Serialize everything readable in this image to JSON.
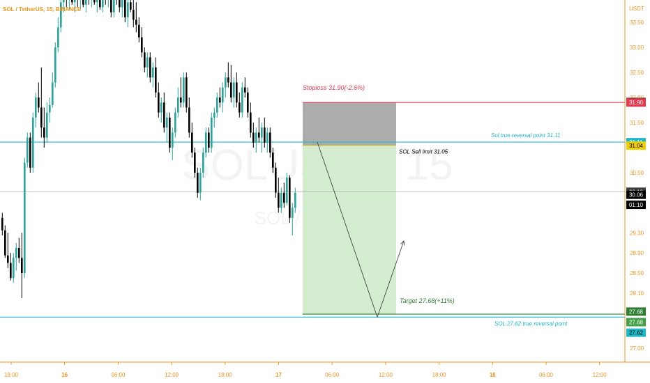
{
  "header": {
    "symbol_title": "SOL / TetherUS, 15, BINANCE"
  },
  "watermark": {
    "line1": "SOLUSDT, 15",
    "line2": "SOL / TetherUS"
  },
  "colors": {
    "up": "#26a69a",
    "down": "#000000",
    "stoploss": "#e53950",
    "target": "#2e7d32",
    "reversal": "#1cb8c8",
    "stop_zone": "#a8a8a8",
    "profit_zone": "#d4ecd0",
    "title": "#f7931a",
    "axis_text": "#f7931a"
  },
  "chart_data": {
    "type": "candlestick",
    "title": "SOL / TetherUS, 15, BINANCE",
    "y_axis_unit": "USDT",
    "ylim": [
      26.6,
      34.15
    ],
    "y_ticks": [
      33.5,
      33.0,
      32.5,
      32.0,
      31.5,
      30.5,
      29.3,
      28.9,
      28.5,
      28.1,
      27.0
    ],
    "y_tick_labels": [
      "33.50",
      "33.00",
      "32.50",
      "32.00",
      "31.50",
      "30.50",
      "29.30",
      "28.90",
      "28.50",
      "28.10",
      "27.00"
    ],
    "x_labels": [
      {
        "label": "18:00",
        "bold": false
      },
      {
        "label": "16",
        "bold": true
      },
      {
        "label": "06:00",
        "bold": false
      },
      {
        "label": "12:00",
        "bold": false
      },
      {
        "label": "18:00",
        "bold": false
      },
      {
        "label": "17",
        "bold": true
      },
      {
        "label": "06:00",
        "bold": false
      },
      {
        "label": "12:00",
        "bold": false
      },
      {
        "label": "18:00",
        "bold": false
      },
      {
        "label": "18",
        "bold": true
      },
      {
        "label": "06:00",
        "bold": false
      },
      {
        "label": "12:00",
        "bold": false
      }
    ],
    "candles": [
      {
        "o": 29.6,
        "h": 29.7,
        "l": 29.25,
        "c": 29.35
      },
      {
        "o": 29.35,
        "h": 29.45,
        "l": 28.8,
        "c": 28.85
      },
      {
        "o": 28.85,
        "h": 29.3,
        "l": 28.6,
        "c": 28.7
      },
      {
        "o": 28.7,
        "h": 28.9,
        "l": 28.35,
        "c": 28.4
      },
      {
        "o": 28.4,
        "h": 28.9,
        "l": 28.3,
        "c": 28.8
      },
      {
        "o": 28.8,
        "h": 29.1,
        "l": 28.55,
        "c": 29.0
      },
      {
        "o": 29.0,
        "h": 29.2,
        "l": 28.7,
        "c": 28.8
      },
      {
        "o": 28.8,
        "h": 29.3,
        "l": 28.0,
        "c": 28.5
      },
      {
        "o": 28.5,
        "h": 30.8,
        "l": 28.4,
        "c": 30.7
      },
      {
        "o": 30.7,
        "h": 31.3,
        "l": 30.6,
        "c": 31.2
      },
      {
        "o": 31.2,
        "h": 31.3,
        "l": 30.5,
        "c": 30.6
      },
      {
        "o": 30.6,
        "h": 31.7,
        "l": 30.5,
        "c": 31.6
      },
      {
        "o": 31.6,
        "h": 32.1,
        "l": 31.4,
        "c": 32.0
      },
      {
        "o": 32.0,
        "h": 32.3,
        "l": 31.7,
        "c": 31.8
      },
      {
        "o": 31.8,
        "h": 32.6,
        "l": 31.2,
        "c": 31.4
      },
      {
        "o": 31.4,
        "h": 31.8,
        "l": 31.0,
        "c": 31.2
      },
      {
        "o": 31.2,
        "h": 31.9,
        "l": 31.1,
        "c": 31.7
      },
      {
        "o": 31.7,
        "h": 32.0,
        "l": 31.5,
        "c": 31.85
      },
      {
        "o": 31.85,
        "h": 32.5,
        "l": 31.8,
        "c": 32.3
      },
      {
        "o": 32.3,
        "h": 33.1,
        "l": 32.2,
        "c": 33.0
      },
      {
        "o": 33.0,
        "h": 33.6,
        "l": 32.9,
        "c": 33.4
      },
      {
        "o": 33.4,
        "h": 34.0,
        "l": 33.3,
        "c": 33.9
      },
      {
        "o": 33.9,
        "h": 34.15,
        "l": 33.7,
        "c": 34.05
      },
      {
        "o": 34.05,
        "h": 34.15,
        "l": 33.8,
        "c": 33.95
      },
      {
        "o": 33.95,
        "h": 34.15,
        "l": 33.75,
        "c": 34.0
      },
      {
        "o": 34.0,
        "h": 34.15,
        "l": 33.85,
        "c": 33.9
      },
      {
        "o": 33.9,
        "h": 34.15,
        "l": 33.7,
        "c": 34.05
      },
      {
        "o": 34.05,
        "h": 34.15,
        "l": 33.8,
        "c": 33.95
      },
      {
        "o": 33.95,
        "h": 34.15,
        "l": 33.75,
        "c": 34.0
      },
      {
        "o": 34.0,
        "h": 34.15,
        "l": 33.8,
        "c": 33.85
      },
      {
        "o": 33.85,
        "h": 34.15,
        "l": 33.7,
        "c": 34.0
      },
      {
        "o": 34.0,
        "h": 34.15,
        "l": 33.85,
        "c": 33.95
      },
      {
        "o": 33.95,
        "h": 34.15,
        "l": 33.8,
        "c": 34.05
      },
      {
        "o": 34.05,
        "h": 34.15,
        "l": 33.85,
        "c": 33.9
      },
      {
        "o": 33.9,
        "h": 34.15,
        "l": 33.7,
        "c": 34.0
      },
      {
        "o": 34.0,
        "h": 34.15,
        "l": 33.75,
        "c": 33.8
      },
      {
        "o": 33.8,
        "h": 34.1,
        "l": 33.7,
        "c": 34.05
      },
      {
        "o": 34.05,
        "h": 34.15,
        "l": 33.85,
        "c": 33.95
      },
      {
        "o": 33.95,
        "h": 34.15,
        "l": 33.8,
        "c": 34.1
      },
      {
        "o": 34.1,
        "h": 34.15,
        "l": 33.6,
        "c": 33.7
      },
      {
        "o": 33.7,
        "h": 34.15,
        "l": 33.6,
        "c": 34.1
      },
      {
        "o": 34.1,
        "h": 34.15,
        "l": 33.85,
        "c": 33.95
      },
      {
        "o": 33.95,
        "h": 34.15,
        "l": 33.7,
        "c": 33.8
      },
      {
        "o": 33.8,
        "h": 34.15,
        "l": 33.6,
        "c": 34.0
      },
      {
        "o": 34.0,
        "h": 34.15,
        "l": 33.5,
        "c": 33.6
      },
      {
        "o": 33.6,
        "h": 34.0,
        "l": 33.4,
        "c": 33.9
      },
      {
        "o": 33.9,
        "h": 34.1,
        "l": 33.7,
        "c": 33.75
      },
      {
        "o": 33.75,
        "h": 34.0,
        "l": 33.4,
        "c": 33.55
      },
      {
        "o": 33.55,
        "h": 33.9,
        "l": 33.3,
        "c": 33.45
      },
      {
        "o": 33.45,
        "h": 33.6,
        "l": 33.1,
        "c": 33.2
      },
      {
        "o": 33.2,
        "h": 33.4,
        "l": 32.8,
        "c": 32.9
      },
      {
        "o": 32.9,
        "h": 33.0,
        "l": 32.5,
        "c": 32.6
      },
      {
        "o": 32.6,
        "h": 32.9,
        "l": 32.4,
        "c": 32.8
      },
      {
        "o": 32.8,
        "h": 32.9,
        "l": 32.3,
        "c": 32.4
      },
      {
        "o": 32.4,
        "h": 32.7,
        "l": 32.2,
        "c": 32.6
      },
      {
        "o": 32.6,
        "h": 32.8,
        "l": 32.0,
        "c": 32.1
      },
      {
        "o": 32.1,
        "h": 32.3,
        "l": 31.6,
        "c": 31.7
      },
      {
        "o": 31.7,
        "h": 32.0,
        "l": 31.5,
        "c": 31.9
      },
      {
        "o": 31.9,
        "h": 32.1,
        "l": 31.3,
        "c": 31.4
      },
      {
        "o": 31.4,
        "h": 31.7,
        "l": 31.1,
        "c": 31.6
      },
      {
        "o": 31.6,
        "h": 31.7,
        "l": 30.9,
        "c": 31.0
      },
      {
        "o": 31.0,
        "h": 31.4,
        "l": 30.75,
        "c": 31.3
      },
      {
        "o": 31.3,
        "h": 31.8,
        "l": 31.2,
        "c": 31.7
      },
      {
        "o": 31.7,
        "h": 32.2,
        "l": 31.6,
        "c": 32.0
      },
      {
        "o": 32.0,
        "h": 32.4,
        "l": 31.8,
        "c": 31.9
      },
      {
        "o": 31.9,
        "h": 32.5,
        "l": 31.8,
        "c": 32.4
      },
      {
        "o": 32.4,
        "h": 32.5,
        "l": 31.7,
        "c": 31.8
      },
      {
        "o": 31.8,
        "h": 32.0,
        "l": 31.2,
        "c": 31.3
      },
      {
        "o": 31.3,
        "h": 31.5,
        "l": 30.8,
        "c": 30.9
      },
      {
        "o": 30.9,
        "h": 31.0,
        "l": 30.4,
        "c": 30.5
      },
      {
        "o": 30.5,
        "h": 30.6,
        "l": 30.0,
        "c": 30.1
      },
      {
        "o": 30.1,
        "h": 30.6,
        "l": 29.95,
        "c": 30.5
      },
      {
        "o": 30.5,
        "h": 31.0,
        "l": 30.4,
        "c": 30.9
      },
      {
        "o": 30.9,
        "h": 31.4,
        "l": 30.8,
        "c": 31.3
      },
      {
        "o": 31.3,
        "h": 31.4,
        "l": 30.9,
        "c": 31.0
      },
      {
        "o": 31.0,
        "h": 31.7,
        "l": 30.9,
        "c": 31.6
      },
      {
        "o": 31.6,
        "h": 31.8,
        "l": 31.4,
        "c": 31.7
      },
      {
        "o": 31.7,
        "h": 32.1,
        "l": 31.6,
        "c": 32.0
      },
      {
        "o": 32.0,
        "h": 32.2,
        "l": 31.8,
        "c": 31.9
      },
      {
        "o": 31.9,
        "h": 32.3,
        "l": 31.7,
        "c": 32.2
      },
      {
        "o": 32.2,
        "h": 32.5,
        "l": 32.0,
        "c": 32.4
      },
      {
        "o": 32.4,
        "h": 32.7,
        "l": 32.2,
        "c": 32.3
      },
      {
        "o": 32.3,
        "h": 32.65,
        "l": 31.9,
        "c": 32.0
      },
      {
        "o": 32.0,
        "h": 32.4,
        "l": 31.8,
        "c": 32.3
      },
      {
        "o": 32.3,
        "h": 32.5,
        "l": 31.8,
        "c": 31.9
      },
      {
        "o": 31.9,
        "h": 32.1,
        "l": 31.6,
        "c": 31.7
      },
      {
        "o": 31.7,
        "h": 32.3,
        "l": 31.6,
        "c": 32.2
      },
      {
        "o": 32.2,
        "h": 32.4,
        "l": 32.0,
        "c": 32.1
      },
      {
        "o": 32.1,
        "h": 32.2,
        "l": 31.6,
        "c": 31.7
      },
      {
        "o": 31.7,
        "h": 31.9,
        "l": 31.2,
        "c": 31.3
      },
      {
        "o": 31.3,
        "h": 31.5,
        "l": 31.0,
        "c": 31.1
      },
      {
        "o": 31.1,
        "h": 31.4,
        "l": 30.9,
        "c": 31.3
      },
      {
        "o": 31.3,
        "h": 31.6,
        "l": 31.1,
        "c": 31.2
      },
      {
        "o": 31.2,
        "h": 31.5,
        "l": 30.9,
        "c": 31.4
      },
      {
        "o": 31.4,
        "h": 31.6,
        "l": 31.0,
        "c": 31.1
      },
      {
        "o": 31.1,
        "h": 31.4,
        "l": 30.9,
        "c": 31.3
      },
      {
        "o": 31.3,
        "h": 31.4,
        "l": 30.8,
        "c": 30.9
      },
      {
        "o": 30.9,
        "h": 31.0,
        "l": 30.5,
        "c": 30.6
      },
      {
        "o": 30.6,
        "h": 30.7,
        "l": 30.0,
        "c": 30.1
      },
      {
        "o": 30.1,
        "h": 30.4,
        "l": 29.7,
        "c": 29.8
      },
      {
        "o": 29.8,
        "h": 30.2,
        "l": 29.7,
        "c": 30.1
      },
      {
        "o": 30.1,
        "h": 30.3,
        "l": 29.8,
        "c": 29.9
      },
      {
        "o": 29.9,
        "h": 30.5,
        "l": 29.85,
        "c": 30.4
      },
      {
        "o": 30.4,
        "h": 30.45,
        "l": 29.5,
        "c": 29.6
      },
      {
        "o": 29.6,
        "h": 29.9,
        "l": 29.25,
        "c": 29.8
      },
      {
        "o": 29.8,
        "h": 30.2,
        "l": 29.7,
        "c": 30.1
      }
    ]
  },
  "annotations": {
    "stoploss": {
      "label": "Stoploss 31.90(-2.6%)",
      "price": 31.9
    },
    "entry": {
      "label": "SOL Sell limit 31.05",
      "price": 31.05
    },
    "target": {
      "label": "Target 27.68(+11%)",
      "price": 27.68
    },
    "reversal_top": {
      "label": "Sol true reversal point 31.11",
      "price": 31.11
    },
    "reversal_bottom": {
      "label": "SOL 27.62 true reversal point",
      "price": 27.62
    },
    "current_price": 30.12
  },
  "price_tags": [
    {
      "text": "31.91",
      "price": 31.91,
      "bg": "#1e1e1e",
      "fg": "#ffffff"
    },
    {
      "text": "31.90",
      "price": 31.9,
      "bg": "#e53950",
      "fg": "#ffffff"
    },
    {
      "text": "31.11",
      "price": 31.11,
      "bg": "#1cb8c8",
      "fg": "#ffffff"
    },
    {
      "text": "31.04",
      "price": 31.04,
      "bg": "#f0d000",
      "fg": "#000000"
    },
    {
      "text": "30.12",
      "price": 30.12,
      "bg": "#3a3a3a",
      "fg": "#ffffff"
    },
    {
      "text": "30.06",
      "price": 30.06,
      "bg": "#000000",
      "fg": "#ffffff"
    },
    {
      "text": "01:10",
      "price": 29.86,
      "bg": "#000000",
      "fg": "#ffffff"
    },
    {
      "text": "27.68",
      "price": 27.73,
      "bg": "#2e7d32",
      "fg": "#ffffff"
    },
    {
      "text": "27.68",
      "price": 27.52,
      "bg": "#43a047",
      "fg": "#ffffff"
    },
    {
      "text": "27.62",
      "price": 27.31,
      "bg": "#1cb8c8",
      "fg": "#000000"
    }
  ]
}
